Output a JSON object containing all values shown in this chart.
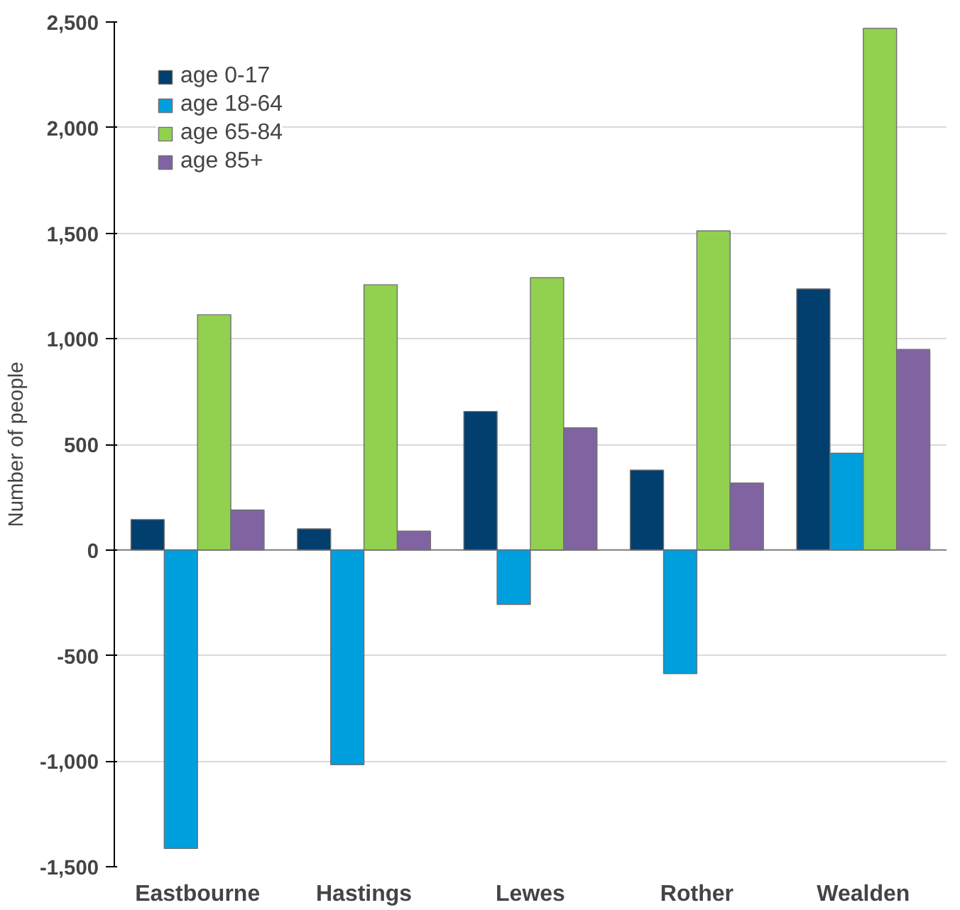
{
  "chart_data": {
    "type": "bar",
    "ylabel": "Number of people",
    "categories": [
      "Eastbourne",
      "Hastings",
      "Lewes",
      "Rother",
      "Wealden"
    ],
    "series": [
      {
        "name": "age 0-17",
        "color": "#003f6e",
        "values": [
          144,
          100,
          656,
          378,
          1236
        ]
      },
      {
        "name": "age 18-64",
        "color": "#009fde",
        "values": [
          -1414,
          -1017,
          -258,
          -586,
          458
        ]
      },
      {
        "name": "age 65-84",
        "color": "#92d050",
        "values": [
          1114,
          1256,
          1289,
          1511,
          2470
        ]
      },
      {
        "name": "age 85+",
        "color": "#8064a2",
        "values": [
          189,
          89,
          578,
          317,
          950
        ]
      }
    ],
    "ylim": [
      -1500,
      2500
    ],
    "yticks": [
      {
        "value": -1500,
        "label": "-1,500"
      },
      {
        "value": -1000,
        "label": "-1,000"
      },
      -500,
      0,
      500,
      {
        "value": 1000,
        "label": "1,000"
      },
      {
        "value": 1500,
        "label": "1,500"
      },
      {
        "value": 2000,
        "label": "2,000"
      },
      {
        "value": 2500,
        "label": "2,500"
      }
    ],
    "grid": "y",
    "legend": "top left"
  }
}
